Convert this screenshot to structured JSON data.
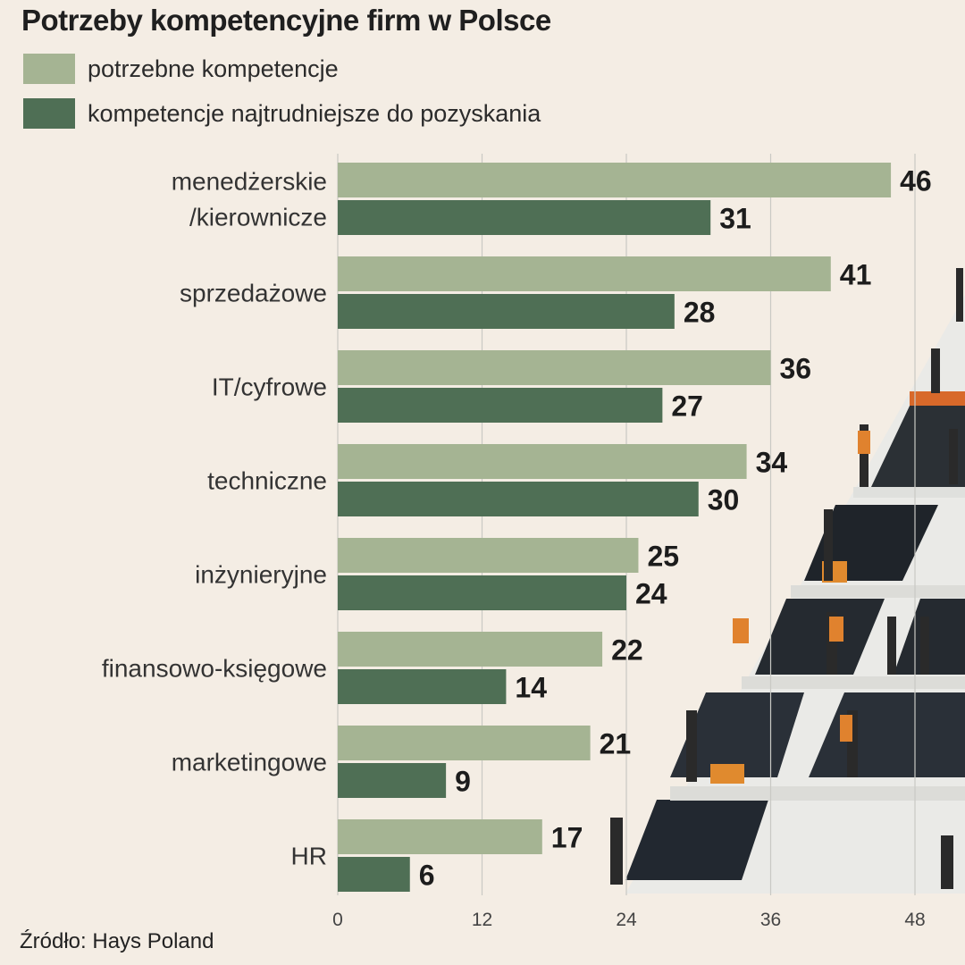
{
  "title": "Potrzeby kompetencyjne firm w Polsce",
  "source": "Źródło: Hays Poland",
  "colors": {
    "series_0": "#a5b493",
    "series_1": "#4f6f55",
    "background": "#f4ede4"
  },
  "chart_data": {
    "type": "bar",
    "orientation": "horizontal",
    "title": "Potrzeby kompetencyjne firm w Polsce",
    "categories": [
      [
        "menedżerskie",
        "/kierownicze"
      ],
      [
        "sprzedażowe"
      ],
      [
        "IT/cyfrowe"
      ],
      [
        "techniczne"
      ],
      [
        "inżynieryjne"
      ],
      [
        "finansowo-księgowe"
      ],
      [
        "marketingowe"
      ],
      [
        "HR"
      ]
    ],
    "series": [
      {
        "name": "potrzebne kompetencje",
        "values": [
          46,
          41,
          36,
          34,
          25,
          22,
          21,
          17
        ]
      },
      {
        "name": "kompetencje najtrudniejsze do pozyskania",
        "values": [
          31,
          28,
          27,
          30,
          24,
          14,
          9,
          6
        ]
      }
    ],
    "xticks": [
      "0",
      "12",
      "24",
      "36",
      "48"
    ],
    "xlim": [
      0,
      48
    ],
    "grid": true,
    "legend_position": "top-left"
  }
}
